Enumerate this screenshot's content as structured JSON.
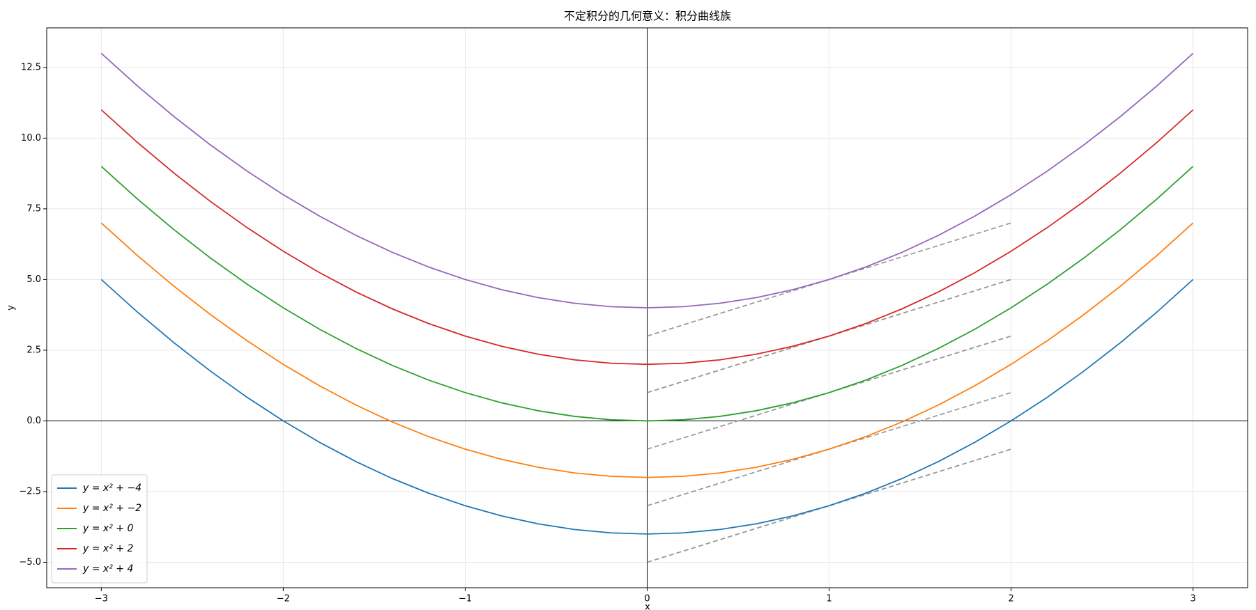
{
  "chart_data": {
    "type": "line",
    "title": "不定积分的几何意义：积分曲线族",
    "xlabel": "x",
    "ylabel": "y",
    "x": [
      -3,
      -2.8,
      -2.6,
      -2.4,
      -2.2,
      -2,
      -1.8,
      -1.6,
      -1.4,
      -1.2,
      -1,
      -0.8,
      -0.6,
      -0.4,
      -0.2,
      0,
      0.2,
      0.4,
      0.6,
      0.8,
      1,
      1.2,
      1.4,
      1.6,
      1.8,
      2,
      2.2,
      2.4,
      2.6,
      2.8,
      3
    ],
    "series": [
      {
        "name": "y = x² + −4",
        "color": "#1f77b4",
        "values": [
          5,
          3.84,
          2.76,
          1.76,
          0.84,
          0,
          -0.76,
          -1.44,
          -2.04,
          -2.56,
          -3,
          -3.36,
          -3.64,
          -3.84,
          -3.96,
          -4,
          -3.96,
          -3.84,
          -3.64,
          -3.36,
          -3,
          -2.56,
          -2.04,
          -1.44,
          -0.76,
          0,
          0.84,
          1.76,
          2.76,
          3.84,
          5
        ]
      },
      {
        "name": "y = x² + −2",
        "color": "#ff7f0e",
        "values": [
          7,
          5.84,
          4.76,
          3.76,
          2.84,
          2,
          1.24,
          0.56,
          -0.04,
          -0.56,
          -1,
          -1.36,
          -1.64,
          -1.84,
          -1.96,
          -2,
          -1.96,
          -1.84,
          -1.64,
          -1.36,
          -1,
          -0.56,
          -0.04,
          0.56,
          1.24,
          2,
          2.84,
          3.76,
          4.76,
          5.84,
          7
        ]
      },
      {
        "name": "y = x² + 0",
        "color": "#2ca02c",
        "values": [
          9,
          7.84,
          6.76,
          5.76,
          4.84,
          4,
          3.24,
          2.56,
          1.96,
          1.44,
          1,
          0.64,
          0.36,
          0.16,
          0.04,
          0,
          0.04,
          0.16,
          0.36,
          0.64,
          1,
          1.44,
          1.96,
          2.56,
          3.24,
          4,
          4.84,
          5.76,
          6.76,
          7.84,
          9
        ]
      },
      {
        "name": "y = x² + 2",
        "color": "#d62728",
        "values": [
          11,
          9.84,
          8.76,
          7.76,
          6.84,
          6,
          5.24,
          4.56,
          3.96,
          3.44,
          3,
          2.64,
          2.36,
          2.16,
          2.04,
          2,
          2.04,
          2.16,
          2.36,
          2.64,
          3,
          3.44,
          3.96,
          4.56,
          5.24,
          6,
          6.84,
          7.76,
          8.76,
          9.84,
          11
        ]
      },
      {
        "name": "y = x² + 4",
        "color": "#9467bd",
        "values": [
          13,
          11.84,
          10.76,
          9.76,
          8.84,
          8,
          7.24,
          6.56,
          5.96,
          5.44,
          5,
          4.64,
          4.36,
          4.16,
          4.04,
          4,
          4.04,
          4.16,
          4.36,
          4.64,
          5,
          5.44,
          5.96,
          6.56,
          7.24,
          8,
          8.84,
          9.76,
          10.76,
          11.84,
          13
        ]
      }
    ],
    "tangent_color": "#999999",
    "tangents": [
      {
        "x": [
          0,
          2
        ],
        "values": [
          -5,
          -1
        ]
      },
      {
        "x": [
          0,
          2
        ],
        "values": [
          -3,
          1
        ]
      },
      {
        "x": [
          0,
          2
        ],
        "values": [
          -1,
          3
        ]
      },
      {
        "x": [
          0,
          2
        ],
        "values": [
          1,
          5
        ]
      },
      {
        "x": [
          0,
          2
        ],
        "values": [
          3,
          7
        ]
      }
    ],
    "hlines": [
      0
    ],
    "vlines": [
      0
    ],
    "xlim": [
      -3.3,
      3.3
    ],
    "ylim": [
      -5.9,
      13.9
    ],
    "xticks": [
      {
        "value": -3,
        "label": "−3"
      },
      {
        "value": -2,
        "label": "−2"
      },
      {
        "value": -1,
        "label": "−1"
      },
      0,
      1,
      2,
      3
    ],
    "yticks": [
      {
        "value": -5,
        "label": "−5.0"
      },
      {
        "value": -2.5,
        "label": "−2.5"
      },
      {
        "value": 0,
        "label": "0.0"
      },
      {
        "value": 2.5,
        "label": "2.5"
      },
      {
        "value": 5,
        "label": "5.0"
      },
      {
        "value": 7.5,
        "label": "7.5"
      },
      {
        "value": 10,
        "label": "10.0"
      },
      {
        "value": 12.5,
        "label": "12.5"
      }
    ],
    "grid": true,
    "legend": "lower left"
  }
}
